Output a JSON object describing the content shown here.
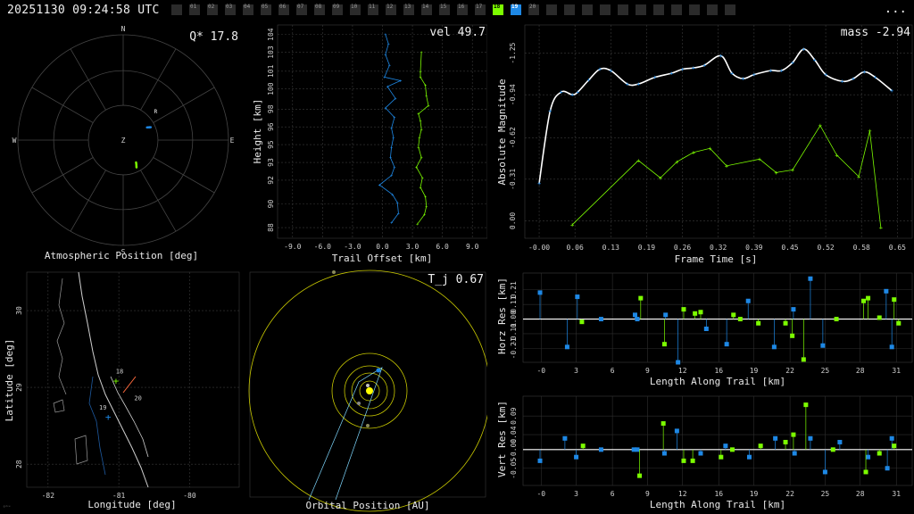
{
  "header": {
    "timestamp": "20251130 09:24:58 UTC",
    "menu_label": "...",
    "cameras": [
      {
        "id": "",
        "state": "off"
      },
      {
        "id": "01",
        "state": "off"
      },
      {
        "id": "02",
        "state": "off"
      },
      {
        "id": "03",
        "state": "off"
      },
      {
        "id": "04",
        "state": "off"
      },
      {
        "id": "05",
        "state": "off"
      },
      {
        "id": "06",
        "state": "off"
      },
      {
        "id": "07",
        "state": "off"
      },
      {
        "id": "08",
        "state": "off"
      },
      {
        "id": "09",
        "state": "off"
      },
      {
        "id": "10",
        "state": "off"
      },
      {
        "id": "11",
        "state": "off"
      },
      {
        "id": "12",
        "state": "off"
      },
      {
        "id": "13",
        "state": "off"
      },
      {
        "id": "14",
        "state": "off"
      },
      {
        "id": "15",
        "state": "off"
      },
      {
        "id": "16",
        "state": "off"
      },
      {
        "id": "17",
        "state": "off"
      },
      {
        "id": "18",
        "state": "green"
      },
      {
        "id": "19",
        "state": "blue"
      },
      {
        "id": "20",
        "state": "off"
      },
      {
        "id": "",
        "state": "off"
      },
      {
        "id": "",
        "state": "off"
      },
      {
        "id": "",
        "state": "off"
      },
      {
        "id": "",
        "state": "off"
      },
      {
        "id": "",
        "state": "off"
      },
      {
        "id": "",
        "state": "off"
      },
      {
        "id": "",
        "state": "off"
      },
      {
        "id": "",
        "state": "off"
      },
      {
        "id": "",
        "state": "off"
      },
      {
        "id": "",
        "state": "off"
      },
      {
        "id": "",
        "state": "off"
      }
    ]
  },
  "colors": {
    "cam18": "#7cfc00",
    "cam19": "#1e88e5",
    "fit": "#ffffff",
    "orbit": "#c8c800"
  },
  "corner_label": "ᵍᵐᵘ",
  "chart_data": [
    {
      "id": "polar",
      "type": "scatter",
      "title": "Atmospheric Position [deg]",
      "annotation": "Q* 17.8",
      "directions": [
        "N",
        "E",
        "S",
        "W",
        "Z"
      ],
      "marker_label": "R",
      "series": [
        {
          "camera": "18",
          "points_az_alt": [
            [
              150,
              68
            ],
            [
              151,
              67
            ],
            [
              152,
              66
            ],
            [
              153,
              65
            ],
            [
              154,
              64
            ]
          ]
        },
        {
          "camera": "19",
          "points_az_alt": [
            [
              62,
              67
            ],
            [
              63,
              66
            ],
            [
              64,
              65
            ],
            [
              65,
              64
            ]
          ]
        }
      ],
      "marker_az_alt": [
        49,
        55
      ]
    },
    {
      "id": "height",
      "type": "line",
      "xlabel": "Trail Offset [km]",
      "ylabel": "Height [km]",
      "annotation": "vel 49.7",
      "xticks": [
        "-9.0",
        "-6.0",
        "-3.0",
        "0.0",
        "3.0",
        "6.0",
        "9.0"
      ],
      "yticks": [
        "88",
        "90",
        "92",
        "93",
        "95",
        "96",
        "98",
        "100",
        "101",
        "103",
        "104"
      ],
      "xlim": [
        -10.5,
        10.5
      ],
      "ylim": [
        87.1,
        105.1
      ],
      "series": [
        {
          "camera": "19",
          "points": [
            [
              0.3,
              104.3
            ],
            [
              0.6,
              103.5
            ],
            [
              0.3,
              102.6
            ],
            [
              0.7,
              101.7
            ],
            [
              0.2,
              100.7
            ],
            [
              1.8,
              100.4
            ],
            [
              0.5,
              99.9
            ],
            [
              1.3,
              98.9
            ],
            [
              0.3,
              98.1
            ],
            [
              1.2,
              97.3
            ],
            [
              0.9,
              96.4
            ],
            [
              1.1,
              95.6
            ],
            [
              0.9,
              94.8
            ],
            [
              0.8,
              93.9
            ],
            [
              1.2,
              93.1
            ],
            [
              0.9,
              92.4
            ],
            [
              -0.3,
              91.6
            ],
            [
              1.0,
              90.8
            ],
            [
              1.5,
              90.1
            ],
            [
              1.6,
              89.2
            ],
            [
              0.9,
              88.4
            ]
          ]
        },
        {
          "camera": "18",
          "points": [
            [
              3.9,
              102.8
            ],
            [
              3.8,
              101.2
            ],
            [
              3.8,
              100.7
            ],
            [
              4.3,
              100.0
            ],
            [
              4.4,
              99.1
            ],
            [
              4.6,
              98.3
            ],
            [
              3.6,
              97.6
            ],
            [
              3.8,
              97.0
            ],
            [
              3.9,
              96.3
            ],
            [
              3.7,
              95.6
            ],
            [
              3.6,
              94.8
            ],
            [
              3.9,
              93.9
            ],
            [
              3.4,
              93.1
            ],
            [
              4.0,
              92.2
            ],
            [
              3.8,
              91.4
            ],
            [
              4.3,
              90.6
            ],
            [
              4.4,
              89.8
            ],
            [
              4.2,
              89.1
            ],
            [
              3.5,
              88.3
            ]
          ]
        }
      ]
    },
    {
      "id": "magnitude",
      "type": "line",
      "xlabel": "Frame Time [s]",
      "ylabel": "Absolute Magnitude",
      "annotation": "mass -2.94",
      "xticks": [
        "-0.00",
        "0.06",
        "0.13",
        "0.19",
        "0.26",
        "0.32",
        "0.39",
        "0.45",
        "0.52",
        "0.58",
        "0.65"
      ],
      "yticks": [
        "0.00",
        "-0.31",
        "-0.62",
        "-0.94",
        "-1.25"
      ],
      "xlim": [
        -0.026,
        0.677
      ],
      "ylim": [
        0.13,
        -1.46
      ],
      "series": [
        {
          "camera": "19",
          "points": [
            [
              0.0,
              -0.28
            ],
            [
              0.02,
              -0.82
            ],
            [
              0.04,
              -0.96
            ],
            [
              0.06,
              -0.94
            ],
            [
              0.07,
              -0.96
            ],
            [
              0.09,
              -1.05
            ],
            [
              0.11,
              -1.13
            ],
            [
              0.13,
              -1.12
            ],
            [
              0.16,
              -1.02
            ],
            [
              0.18,
              -1.02
            ],
            [
              0.21,
              -1.07
            ],
            [
              0.24,
              -1.1
            ],
            [
              0.26,
              -1.13
            ],
            [
              0.28,
              -1.14
            ],
            [
              0.3,
              -1.16
            ],
            [
              0.33,
              -1.23
            ],
            [
              0.35,
              -1.1
            ],
            [
              0.37,
              -1.06
            ],
            [
              0.39,
              -1.09
            ],
            [
              0.42,
              -1.12
            ],
            [
              0.44,
              -1.12
            ],
            [
              0.46,
              -1.18
            ],
            [
              0.48,
              -1.28
            ],
            [
              0.5,
              -1.2
            ],
            [
              0.52,
              -1.09
            ],
            [
              0.55,
              -1.04
            ],
            [
              0.57,
              -1.06
            ],
            [
              0.59,
              -1.11
            ],
            [
              0.61,
              -1.07
            ],
            [
              0.64,
              -0.97
            ]
          ]
        },
        {
          "camera": "18",
          "points": [
            [
              0.06,
              0.03
            ],
            [
              0.18,
              -0.45
            ],
            [
              0.22,
              -0.32
            ],
            [
              0.25,
              -0.44
            ],
            [
              0.28,
              -0.51
            ],
            [
              0.31,
              -0.54
            ],
            [
              0.34,
              -0.41
            ],
            [
              0.4,
              -0.46
            ],
            [
              0.43,
              -0.36
            ],
            [
              0.46,
              -0.38
            ],
            [
              0.51,
              -0.71
            ],
            [
              0.54,
              -0.49
            ],
            [
              0.58,
              -0.33
            ],
            [
              0.6,
              -0.67
            ],
            [
              0.62,
              0.05
            ]
          ]
        }
      ]
    },
    {
      "id": "map",
      "type": "scatter",
      "xlabel": "Longitude [deg]",
      "ylabel": "Latitude [deg]",
      "xticks": [
        "-82",
        "-81",
        "-80"
      ],
      "yticks": [
        "30",
        "29",
        "28"
      ],
      "xlim": [
        -82.3,
        -79.3
      ],
      "ylim": [
        27.7,
        30.5
      ],
      "stations": [
        {
          "label": "18",
          "lon": -81.04,
          "lat": 29.09,
          "camera": "18"
        },
        {
          "label": "19",
          "lon": -81.15,
          "lat": 28.62,
          "camera": "19"
        },
        {
          "label": "20",
          "lon": -80.78,
          "lat": 28.74,
          "camera": ""
        }
      ]
    },
    {
      "id": "orbit",
      "type": "scatter",
      "xlabel": "Orbital Position [AU]",
      "annotation": "T_j 0.67"
    },
    {
      "id": "horz",
      "type": "scatter",
      "xlabel": "Length Along Trail [km]",
      "ylabel": "Horz Res [km]",
      "xticks": [
        "-0",
        "3",
        "6",
        "9",
        "12",
        "16",
        "19",
        "22",
        "25",
        "28",
        "31"
      ],
      "yticks": [
        "0.21",
        "0.11",
        "0.00",
        "-0.11",
        "-0.21"
      ],
      "xlim": [
        -1.6,
        32.8
      ],
      "ylim": [
        -0.31,
        0.33
      ],
      "series": [
        {
          "camera": "19",
          "points": [
            [
              -0.1,
              0.19
            ],
            [
              2.3,
              -0.2
            ],
            [
              3.2,
              0.16
            ],
            [
              5.3,
              0.0
            ],
            [
              8.3,
              0.03
            ],
            [
              8.5,
              0.0
            ],
            [
              11.0,
              0.03
            ],
            [
              12.1,
              -0.31
            ],
            [
              14.6,
              -0.07
            ],
            [
              16.4,
              -0.18
            ],
            [
              18.3,
              0.13
            ],
            [
              20.6,
              -0.2
            ],
            [
              22.3,
              0.07
            ],
            [
              23.8,
              0.29
            ],
            [
              24.9,
              -0.19
            ],
            [
              30.5,
              0.2
            ],
            [
              31.0,
              -0.2
            ]
          ]
        },
        {
          "camera": "18",
          "points": [
            [
              3.6,
              -0.02
            ],
            [
              8.8,
              0.15
            ],
            [
              10.9,
              -0.18
            ],
            [
              12.6,
              0.07
            ],
            [
              13.6,
              0.04
            ],
            [
              14.1,
              0.05
            ],
            [
              17.0,
              0.03
            ],
            [
              17.6,
              0.0
            ],
            [
              19.2,
              -0.03
            ],
            [
              21.6,
              -0.03
            ],
            [
              22.2,
              -0.12
            ],
            [
              23.2,
              -0.29
            ],
            [
              26.1,
              0.0
            ],
            [
              28.5,
              0.13
            ],
            [
              28.9,
              0.15
            ],
            [
              29.9,
              0.01
            ],
            [
              31.2,
              0.14
            ],
            [
              31.6,
              -0.03
            ]
          ]
        }
      ]
    },
    {
      "id": "vert",
      "type": "scatter",
      "xlabel": "Length Along Trail [km]",
      "ylabel": "Vert Res [km]",
      "xticks": [
        "-0",
        "3",
        "6",
        "9",
        "12",
        "16",
        "19",
        "22",
        "25",
        "28",
        "31"
      ],
      "yticks": [
        "0.09",
        "0.04",
        "-0.00",
        "-0.05"
      ],
      "xlim": [
        -1.6,
        32.8
      ],
      "ylim": [
        -0.096,
        0.143
      ],
      "series": [
        {
          "camera": "19",
          "points": [
            [
              -0.1,
              -0.03
            ],
            [
              2.1,
              0.03
            ],
            [
              3.1,
              -0.02
            ],
            [
              5.3,
              0.0
            ],
            [
              8.2,
              0.0
            ],
            [
              8.5,
              0.0
            ],
            [
              10.9,
              -0.01
            ],
            [
              12.0,
              0.05
            ],
            [
              14.1,
              -0.01
            ],
            [
              16.3,
              0.01
            ],
            [
              18.4,
              -0.02
            ],
            [
              20.7,
              0.03
            ],
            [
              22.4,
              -0.01
            ],
            [
              23.8,
              0.03
            ],
            [
              25.1,
              -0.06
            ],
            [
              26.4,
              0.02
            ],
            [
              28.9,
              -0.02
            ],
            [
              30.6,
              -0.05
            ],
            [
              31.0,
              0.03
            ]
          ]
        },
        {
          "camera": "18",
          "points": [
            [
              3.7,
              0.01
            ],
            [
              8.7,
              -0.07
            ],
            [
              10.8,
              0.07
            ],
            [
              12.6,
              -0.03
            ],
            [
              13.4,
              -0.03
            ],
            [
              15.9,
              -0.02
            ],
            [
              16.9,
              0.0
            ],
            [
              19.4,
              0.01
            ],
            [
              21.6,
              0.02
            ],
            [
              22.3,
              0.04
            ],
            [
              23.4,
              0.12
            ],
            [
              25.8,
              0.0
            ],
            [
              28.7,
              -0.06
            ],
            [
              29.9,
              -0.01
            ],
            [
              31.2,
              0.01
            ]
          ]
        }
      ]
    }
  ]
}
